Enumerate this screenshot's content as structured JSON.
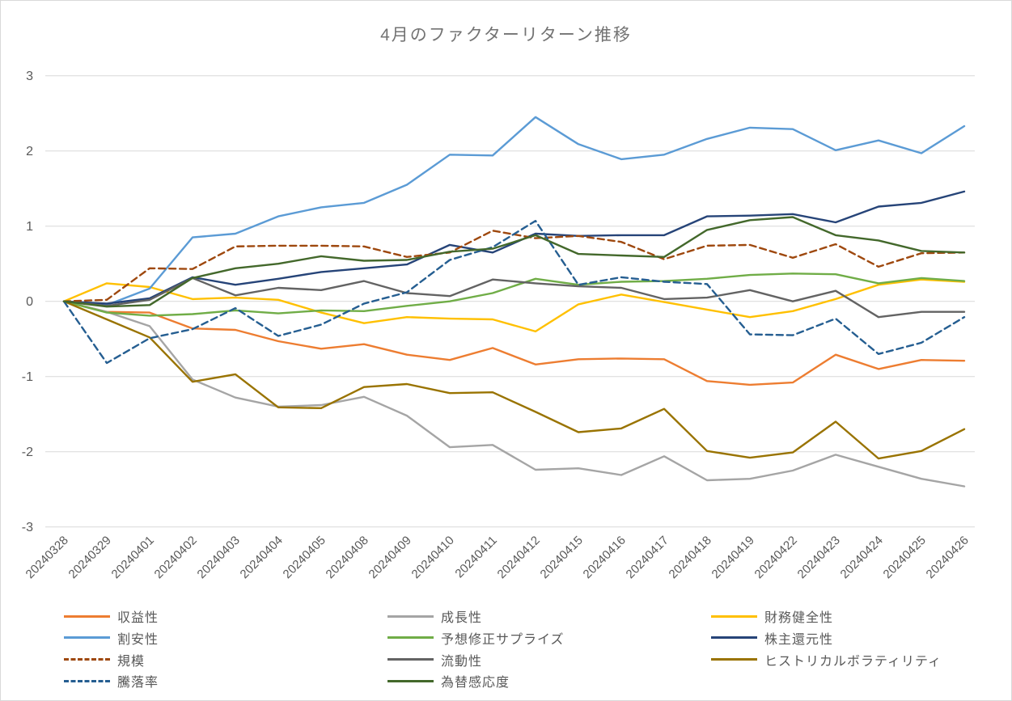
{
  "title": "4月のファクターリターン推移",
  "chart_data": {
    "type": "line",
    "title": "4月のファクターリターン推移",
    "xlabel": "",
    "ylabel": "",
    "ylim": [
      -3,
      3
    ],
    "yticks": [
      3,
      2,
      1,
      0,
      -1,
      -2,
      -3
    ],
    "grid": "horizontal",
    "grid_color": "#d9d9d9",
    "axis_text_color": "#595959",
    "legend_position": "bottom",
    "categories": [
      "20240328",
      "20240329",
      "20240401",
      "20240402",
      "20240403",
      "20240404",
      "20240405",
      "20240408",
      "20240409",
      "20240410",
      "20240411",
      "20240412",
      "20240415",
      "20240416",
      "20240417",
      "20240418",
      "20240419",
      "20240422",
      "20240423",
      "20240424",
      "20240425",
      "20240426"
    ],
    "series": [
      {
        "name": "収益性",
        "color": "#ED7D31",
        "dashed": false,
        "values": [
          0,
          -0.14,
          -0.15,
          -0.36,
          -0.38,
          -0.53,
          -0.63,
          -0.57,
          -0.71,
          -0.78,
          -0.62,
          -0.84,
          -0.77,
          -0.76,
          -0.77,
          -1.06,
          -1.11,
          -1.08,
          -0.71,
          -0.9,
          -0.78,
          -0.79
        ]
      },
      {
        "name": "成長性",
        "color": "#A5A5A5",
        "dashed": false,
        "values": [
          0,
          -0.14,
          -0.33,
          -1.04,
          -1.28,
          -1.4,
          -1.38,
          -1.27,
          -1.52,
          -1.94,
          -1.91,
          -2.24,
          -2.22,
          -2.31,
          -2.06,
          -2.38,
          -2.36,
          -2.25,
          -2.04,
          -2.2,
          -2.36,
          -2.46
        ]
      },
      {
        "name": "財務健全性",
        "color": "#FFC000",
        "dashed": false,
        "values": [
          0,
          0.24,
          0.19,
          0.03,
          0.05,
          0.02,
          -0.15,
          -0.29,
          -0.21,
          -0.23,
          -0.24,
          -0.4,
          -0.04,
          0.09,
          -0.01,
          -0.11,
          -0.21,
          -0.13,
          0.03,
          0.22,
          0.29,
          0.26
        ]
      },
      {
        "name": "割安性",
        "color": "#5B9BD5",
        "dashed": false,
        "values": [
          0,
          -0.05,
          0.17,
          0.85,
          0.9,
          1.13,
          1.25,
          1.31,
          1.55,
          1.95,
          1.94,
          2.45,
          2.09,
          1.89,
          1.95,
          2.16,
          2.31,
          2.29,
          2.01,
          2.14,
          1.97,
          2.33
        ]
      },
      {
        "name": "予想修正サプライズ",
        "color": "#70AD47",
        "dashed": false,
        "values": [
          0,
          -0.15,
          -0.19,
          -0.17,
          -0.12,
          -0.16,
          -0.12,
          -0.13,
          -0.06,
          0.0,
          0.11,
          0.3,
          0.22,
          0.26,
          0.27,
          0.3,
          0.35,
          0.37,
          0.36,
          0.24,
          0.31,
          0.27
        ]
      },
      {
        "name": "株主還元性",
        "color": "#264478",
        "dashed": false,
        "values": [
          0,
          -0.03,
          0.04,
          0.32,
          0.22,
          0.3,
          0.39,
          0.44,
          0.49,
          0.75,
          0.65,
          0.9,
          0.87,
          0.88,
          0.88,
          1.13,
          1.14,
          1.16,
          1.05,
          1.26,
          1.31,
          1.46
        ]
      },
      {
        "name": "規模",
        "color": "#9E480E",
        "dashed": true,
        "values": [
          0,
          0.02,
          0.44,
          0.43,
          0.73,
          0.74,
          0.74,
          0.73,
          0.59,
          0.65,
          0.94,
          0.84,
          0.87,
          0.79,
          0.56,
          0.74,
          0.75,
          0.58,
          0.76,
          0.46,
          0.64,
          0.65
        ]
      },
      {
        "name": "流動性",
        "color": "#636363",
        "dashed": false,
        "values": [
          0,
          -0.06,
          0.02,
          0.31,
          0.08,
          0.18,
          0.15,
          0.27,
          0.11,
          0.07,
          0.29,
          0.24,
          0.2,
          0.18,
          0.03,
          0.05,
          0.15,
          0.0,
          0.14,
          -0.21,
          -0.14,
          -0.14
        ]
      },
      {
        "name": "ヒストリカルボラティリティ",
        "color": "#997300",
        "dashed": false,
        "values": [
          0,
          -0.24,
          -0.48,
          -1.07,
          -0.97,
          -1.41,
          -1.42,
          -1.14,
          -1.1,
          -1.22,
          -1.21,
          -1.47,
          -1.74,
          -1.69,
          -1.43,
          -1.99,
          -2.08,
          -2.01,
          -1.6,
          -2.09,
          -1.99,
          -1.7
        ]
      },
      {
        "name": "騰落率",
        "color": "#255E91",
        "dashed": true,
        "values": [
          0,
          -0.82,
          -0.49,
          -0.37,
          -0.09,
          -0.46,
          -0.31,
          -0.03,
          0.12,
          0.55,
          0.72,
          1.07,
          0.22,
          0.32,
          0.26,
          0.23,
          -0.44,
          -0.45,
          -0.23,
          -0.7,
          -0.55,
          -0.21
        ]
      },
      {
        "name": "為替感応度",
        "color": "#43682B",
        "dashed": false,
        "values": [
          0,
          -0.07,
          -0.05,
          0.31,
          0.44,
          0.5,
          0.6,
          0.54,
          0.55,
          0.66,
          0.7,
          0.88,
          0.63,
          0.61,
          0.59,
          0.95,
          1.08,
          1.12,
          0.88,
          0.81,
          0.67,
          0.65
        ]
      }
    ]
  }
}
